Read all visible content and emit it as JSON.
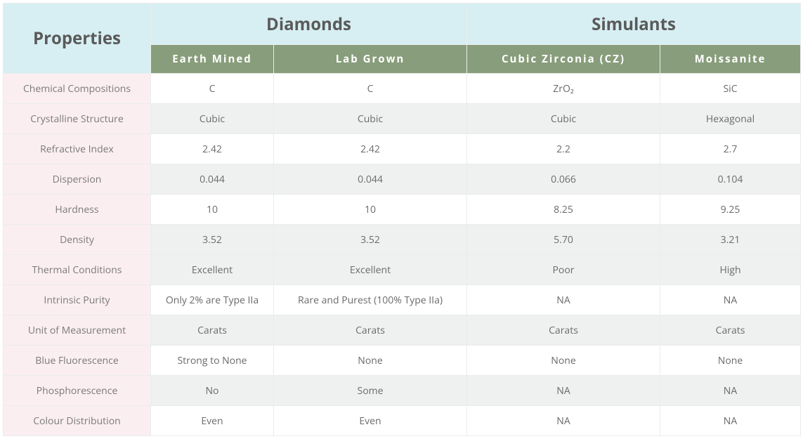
{
  "header": {
    "properties": "Properties",
    "diamonds": "Diamonds",
    "simulants": "Simulants",
    "sub": {
      "earth_mined": "Earth Mined",
      "lab_grown": "Lab Grown",
      "cz": "Cubic Zirconia (CZ)",
      "moissanite": "Moissanite"
    }
  },
  "rows": [
    {
      "prop": "Chemical Compositions",
      "em": "C",
      "lg": "C",
      "cz": "ZrO₂",
      "mo": "SiC",
      "shade": false
    },
    {
      "prop": "Crystalline Structure",
      "em": "Cubic",
      "lg": "Cubic",
      "cz": "Cubic",
      "mo": "Hexagonal",
      "shade": true
    },
    {
      "prop": "Refractive Index",
      "em": "2.42",
      "lg": "2.42",
      "cz": "2.2",
      "mo": "2.7",
      "shade": false
    },
    {
      "prop": "Dispersion",
      "em": "0.044",
      "lg": "0.044",
      "cz": "0.066",
      "mo": "0.104",
      "shade": true
    },
    {
      "prop": "Hardness",
      "em": "10",
      "lg": "10",
      "cz": "8.25",
      "mo": "9.25",
      "shade": false
    },
    {
      "prop": "Density",
      "em": "3.52",
      "lg": "3.52",
      "cz": "5.70",
      "mo": "3.21",
      "shade": true
    },
    {
      "prop": "Thermal Conditions",
      "em": "Excellent",
      "lg": "Excellent",
      "cz": "Poor",
      "mo": "High",
      "shade": true
    },
    {
      "prop": "Intrinsic Purity",
      "em": "Only 2% are Type IIa",
      "lg": "Rare and Purest (100% Type IIa)",
      "cz": "NA",
      "mo": "NA",
      "shade": false
    },
    {
      "prop": "Unit of Measurement",
      "em": "Carats",
      "lg": "Carats",
      "cz": "Carats",
      "mo": "Carats",
      "shade": true
    },
    {
      "prop": "Blue Fluorescence",
      "em": "Strong to None",
      "lg": "None",
      "cz": "None",
      "mo": "None",
      "shade": false
    },
    {
      "prop": "Phosphorescence",
      "em": "No",
      "lg": "Some",
      "cz": "NA",
      "mo": "NA",
      "shade": true
    },
    {
      "prop": "Colour Distribution",
      "em": "Even",
      "lg": "Even",
      "cz": "NA",
      "mo": "NA",
      "shade": false
    }
  ],
  "style": {
    "header_bg": "#d7eff2",
    "subheader_bg": "#889d7b",
    "subheader_fg": "#ffffff",
    "prop_bg": "#fbeef1",
    "row_alt_bg": "#eef1ef",
    "border": "#e9eceb",
    "text": "#6a6a6a"
  }
}
